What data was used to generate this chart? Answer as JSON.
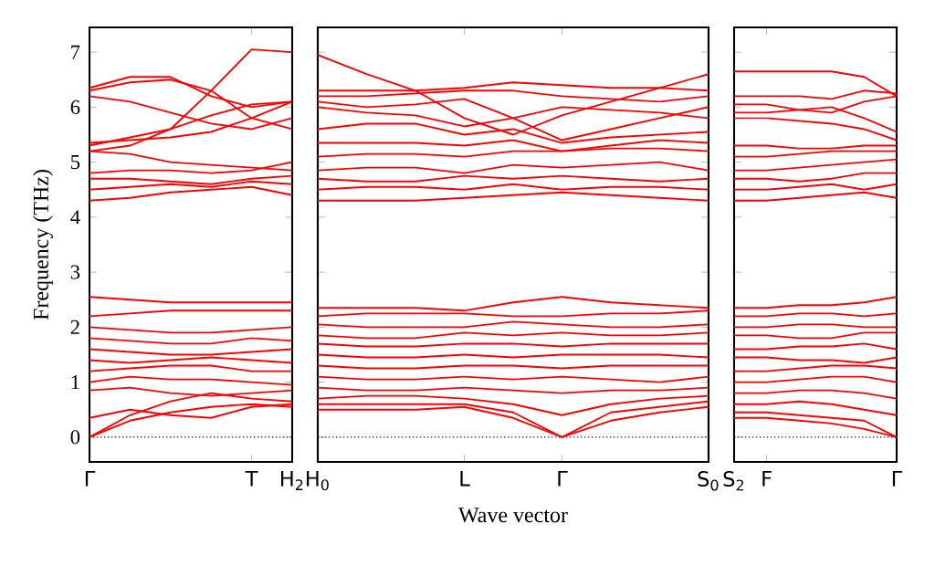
{
  "chart_data": [
    {
      "type": "line",
      "ylabel": "Frequency (THz)",
      "categories": [
        "Γ",
        null,
        null,
        null,
        "T",
        "H$_{2}$"
      ],
      "ylim": [
        -0.45,
        7.45
      ],
      "yticks": [
        0,
        1,
        2,
        3,
        4,
        5,
        6,
        7
      ],
      "ref_lines": [
        {
          "axis": "y",
          "value": 0,
          "color": "#0000ff",
          "line_style": "dotted"
        }
      ],
      "series": [
        {
          "color": "#ff0000",
          "values": [
            0,
            0.3,
            0.45,
            0.55,
            0.6,
            0.55
          ]
        },
        {
          "color": "#ff0000",
          "values": [
            0,
            0.4,
            0.65,
            0.8,
            0.7,
            0.65
          ]
        },
        {
          "color": "#ff0000",
          "values": [
            0.35,
            0.5,
            0.4,
            0.35,
            0.55,
            0.6
          ]
        },
        {
          "color": "#ff0000",
          "values": [
            0.85,
            0.9,
            0.8,
            0.75,
            0.8,
            0.85
          ]
        },
        {
          "color": "#ff0000",
          "values": [
            1.0,
            1.1,
            1.05,
            1.05,
            1.0,
            0.95
          ]
        },
        {
          "color": "#ff0000",
          "values": [
            1.2,
            1.25,
            1.3,
            1.3,
            1.2,
            1.2
          ]
        },
        {
          "color": "#ff0000",
          "values": [
            1.4,
            1.35,
            1.4,
            1.45,
            1.4,
            1.35
          ]
        },
        {
          "color": "#ff0000",
          "values": [
            1.6,
            1.55,
            1.5,
            1.5,
            1.55,
            1.6
          ]
        },
        {
          "color": "#ff0000",
          "values": [
            1.8,
            1.75,
            1.7,
            1.7,
            1.8,
            1.75
          ]
        },
        {
          "color": "#ff0000",
          "values": [
            2.0,
            1.95,
            1.9,
            1.9,
            1.95,
            2.0
          ]
        },
        {
          "color": "#ff0000",
          "values": [
            2.2,
            2.25,
            2.3,
            2.3,
            2.3,
            2.3
          ]
        },
        {
          "color": "#ff0000",
          "values": [
            2.55,
            2.5,
            2.45,
            2.45,
            2.45,
            2.45
          ]
        },
        {
          "color": "#ff0000",
          "values": [
            4.3,
            4.35,
            4.45,
            4.5,
            4.55,
            4.4
          ]
        },
        {
          "color": "#ff0000",
          "values": [
            4.5,
            4.55,
            4.6,
            4.55,
            4.65,
            4.6
          ]
        },
        {
          "color": "#ff0000",
          "values": [
            4.7,
            4.7,
            4.65,
            4.6,
            4.7,
            4.75
          ]
        },
        {
          "color": "#ff0000",
          "values": [
            4.8,
            4.85,
            4.85,
            4.8,
            4.85,
            5.0
          ]
        },
        {
          "color": "#ff0000",
          "values": [
            5.2,
            5.15,
            5.0,
            4.95,
            4.9,
            4.85
          ]
        },
        {
          "color": "#ff0000",
          "values": [
            5.35,
            5.4,
            5.45,
            5.55,
            5.8,
            5.6
          ]
        },
        {
          "color": "#ff0000",
          "values": [
            6.3,
            6.45,
            6.5,
            6.3,
            5.8,
            6.1
          ]
        },
        {
          "color": "#ff0000",
          "values": [
            6.2,
            6.1,
            5.9,
            5.7,
            5.6,
            5.8
          ]
        },
        {
          "color": "#ff0000",
          "values": [
            5.2,
            5.3,
            5.6,
            6.3,
            7.05,
            7.0
          ]
        },
        {
          "color": "#ff0000",
          "values": [
            6.35,
            6.55,
            6.55,
            6.2,
            6.0,
            6.1
          ]
        },
        {
          "color": "#ff0000",
          "values": [
            5.3,
            5.45,
            5.6,
            5.85,
            6.05,
            6.1
          ]
        }
      ]
    },
    {
      "type": "line",
      "xlabel": "Wave vector",
      "tick_labels": "x",
      "categories": [
        "H$_{0}$",
        null,
        null,
        "L",
        null,
        "Γ",
        null,
        null,
        "S$_{0}$"
      ],
      "ylim": [
        -0.45,
        7.45
      ],
      "yticks": [
        0,
        1,
        2,
        3,
        4,
        5,
        6,
        7
      ],
      "ref_lines": [
        {
          "axis": "y",
          "value": 0,
          "color": "#0000ff",
          "line_style": "dotted"
        }
      ],
      "series": [
        {
          "color": "#ff0000",
          "values": [
            0.5,
            0.5,
            0.5,
            0.55,
            0.35,
            0,
            0.3,
            0.45,
            0.55
          ]
        },
        {
          "color": "#ff0000",
          "values": [
            0.6,
            0.6,
            0.6,
            0.6,
            0.45,
            0,
            0.45,
            0.55,
            0.65
          ]
        },
        {
          "color": "#ff0000",
          "values": [
            0.7,
            0.75,
            0.75,
            0.7,
            0.6,
            0.4,
            0.6,
            0.7,
            0.75
          ]
        },
        {
          "color": "#ff0000",
          "values": [
            0.9,
            0.85,
            0.85,
            0.9,
            0.85,
            0.8,
            0.85,
            0.85,
            0.9
          ]
        },
        {
          "color": "#ff0000",
          "values": [
            1.1,
            1.05,
            1.05,
            1.1,
            1.05,
            1.1,
            1.05,
            1.0,
            1.1
          ]
        },
        {
          "color": "#ff0000",
          "values": [
            1.3,
            1.25,
            1.25,
            1.3,
            1.3,
            1.25,
            1.3,
            1.3,
            1.3
          ]
        },
        {
          "color": "#ff0000",
          "values": [
            1.5,
            1.45,
            1.45,
            1.5,
            1.45,
            1.5,
            1.5,
            1.5,
            1.45
          ]
        },
        {
          "color": "#ff0000",
          "values": [
            1.7,
            1.65,
            1.65,
            1.7,
            1.7,
            1.65,
            1.7,
            1.7,
            1.7
          ]
        },
        {
          "color": "#ff0000",
          "values": [
            1.85,
            1.8,
            1.8,
            1.9,
            1.85,
            1.9,
            1.85,
            1.85,
            1.9
          ]
        },
        {
          "color": "#ff0000",
          "values": [
            2.05,
            2.0,
            2.0,
            2.0,
            2.1,
            2.05,
            2.0,
            2.0,
            2.05
          ]
        },
        {
          "color": "#ff0000",
          "values": [
            2.2,
            2.25,
            2.25,
            2.25,
            2.2,
            2.2,
            2.25,
            2.25,
            2.3
          ]
        },
        {
          "color": "#ff0000",
          "values": [
            2.35,
            2.35,
            2.35,
            2.3,
            2.45,
            2.55,
            2.45,
            2.4,
            2.35
          ]
        },
        {
          "color": "#ff0000",
          "values": [
            4.3,
            4.3,
            4.3,
            4.35,
            4.4,
            4.45,
            4.4,
            4.35,
            4.3
          ]
        },
        {
          "color": "#ff0000",
          "values": [
            4.5,
            4.55,
            4.55,
            4.5,
            4.6,
            4.5,
            4.55,
            4.55,
            4.5
          ]
        },
        {
          "color": "#ff0000",
          "values": [
            4.7,
            4.65,
            4.65,
            4.75,
            4.7,
            4.75,
            4.7,
            4.65,
            4.7
          ]
        },
        {
          "color": "#ff0000",
          "values": [
            4.85,
            4.9,
            4.9,
            4.8,
            4.95,
            4.9,
            4.95,
            5.0,
            4.85
          ]
        },
        {
          "color": "#ff0000",
          "values": [
            5.1,
            5.15,
            5.15,
            5.1,
            5.2,
            5.2,
            5.25,
            5.25,
            5.2
          ]
        },
        {
          "color": "#ff0000",
          "values": [
            5.35,
            5.35,
            5.35,
            5.3,
            5.4,
            5.2,
            5.3,
            5.4,
            5.35
          ]
        },
        {
          "color": "#ff0000",
          "values": [
            5.6,
            5.7,
            5.7,
            5.5,
            5.6,
            5.35,
            5.45,
            5.5,
            5.55
          ]
        },
        {
          "color": "#ff0000",
          "values": [
            6.0,
            5.9,
            5.85,
            5.65,
            5.8,
            6.0,
            5.95,
            5.9,
            5.8
          ]
        },
        {
          "color": "#ff0000",
          "values": [
            6.2,
            6.2,
            6.25,
            6.3,
            6.3,
            6.2,
            6.15,
            6.1,
            6.2
          ]
        },
        {
          "color": "#ff0000",
          "values": [
            6.3,
            6.3,
            6.3,
            6.35,
            6.45,
            6.4,
            6.35,
            6.35,
            6.3
          ]
        },
        {
          "color": "#ff0000",
          "values": [
            6.95,
            6.6,
            6.3,
            5.8,
            5.5,
            5.85,
            6.1,
            6.35,
            6.6
          ]
        },
        {
          "color": "#ff0000",
          "values": [
            6.1,
            6.0,
            6.05,
            6.15,
            5.8,
            5.4,
            5.6,
            5.8,
            6.0
          ]
        }
      ]
    },
    {
      "type": "line",
      "tick_labels": "x",
      "categories": [
        "S$_{2}$",
        "F",
        null,
        null,
        null,
        "Γ"
      ],
      "ylim": [
        -0.45,
        7.45
      ],
      "yticks": [
        0,
        1,
        2,
        3,
        4,
        5,
        6,
        7
      ],
      "ref_lines": [
        {
          "axis": "y",
          "value": 0,
          "color": "#0000ff",
          "line_style": "dotted"
        }
      ],
      "series": [
        {
          "color": "#ff0000",
          "values": [
            0.35,
            0.35,
            0.3,
            0.25,
            0.15,
            0
          ]
        },
        {
          "color": "#ff0000",
          "values": [
            0.45,
            0.45,
            0.4,
            0.35,
            0.3,
            0
          ]
        },
        {
          "color": "#ff0000",
          "values": [
            0.6,
            0.6,
            0.65,
            0.6,
            0.5,
            0.4
          ]
        },
        {
          "color": "#ff0000",
          "values": [
            0.8,
            0.8,
            0.85,
            0.85,
            0.8,
            0.7
          ]
        },
        {
          "color": "#ff0000",
          "values": [
            1.0,
            1.0,
            1.05,
            1.1,
            1.1,
            1.0
          ]
        },
        {
          "color": "#ff0000",
          "values": [
            1.2,
            1.2,
            1.25,
            1.3,
            1.3,
            1.25
          ]
        },
        {
          "color": "#ff0000",
          "values": [
            1.45,
            1.45,
            1.4,
            1.4,
            1.35,
            1.45
          ]
        },
        {
          "color": "#ff0000",
          "values": [
            1.6,
            1.6,
            1.65,
            1.65,
            1.7,
            1.6
          ]
        },
        {
          "color": "#ff0000",
          "values": [
            1.85,
            1.85,
            1.8,
            1.8,
            1.9,
            1.9
          ]
        },
        {
          "color": "#ff0000",
          "values": [
            2.0,
            2.0,
            2.05,
            2.05,
            2.0,
            2.0
          ]
        },
        {
          "color": "#ff0000",
          "values": [
            2.2,
            2.2,
            2.25,
            2.25,
            2.2,
            2.25
          ]
        },
        {
          "color": "#ff0000",
          "values": [
            2.35,
            2.35,
            2.4,
            2.4,
            2.45,
            2.55
          ]
        },
        {
          "color": "#ff0000",
          "values": [
            4.3,
            4.3,
            4.35,
            4.4,
            4.45,
            4.35
          ]
        },
        {
          "color": "#ff0000",
          "values": [
            4.5,
            4.5,
            4.55,
            4.6,
            4.5,
            4.6
          ]
        },
        {
          "color": "#ff0000",
          "values": [
            4.7,
            4.7,
            4.65,
            4.7,
            4.8,
            4.8
          ]
        },
        {
          "color": "#ff0000",
          "values": [
            4.85,
            4.85,
            4.9,
            4.95,
            5.0,
            5.05
          ]
        },
        {
          "color": "#ff0000",
          "values": [
            5.1,
            5.1,
            5.15,
            5.2,
            5.2,
            5.2
          ]
        },
        {
          "color": "#ff0000",
          "values": [
            5.3,
            5.3,
            5.25,
            5.25,
            5.3,
            5.3
          ]
        },
        {
          "color": "#ff0000",
          "values": [
            5.8,
            5.8,
            5.75,
            5.7,
            5.6,
            5.4
          ]
        },
        {
          "color": "#ff0000",
          "values": [
            5.9,
            5.9,
            5.95,
            6.0,
            5.8,
            5.55
          ]
        },
        {
          "color": "#ff0000",
          "values": [
            6.05,
            6.05,
            5.95,
            5.9,
            6.1,
            6.2
          ]
        },
        {
          "color": "#ff0000",
          "values": [
            6.2,
            6.2,
            6.2,
            6.15,
            6.3,
            6.25
          ]
        },
        {
          "color": "#ff0000",
          "values": [
            6.65,
            6.65,
            6.65,
            6.65,
            6.55,
            6.2
          ]
        }
      ]
    }
  ]
}
